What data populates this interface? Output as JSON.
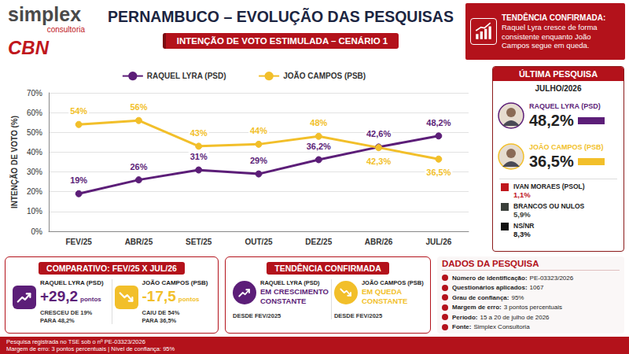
{
  "header": {
    "brand": "simplex",
    "brand_sub": "consultoria",
    "partner": "CBN",
    "title": "PERNAMBUCO – EVOLUÇÃO DAS PESQUISAS",
    "subtitle": "INTENÇÃO DE VOTO ESTIMULADA – CENÁRIO 1",
    "callout": {
      "title": "TENDÊNCIA CONFIRMADA:",
      "text": "Raquel Lyra cresce de forma consistente enquanto João Campos segue em queda."
    }
  },
  "chart_data": {
    "type": "line",
    "y_label": "INTENÇÃO DE VOTO (%)",
    "categories": [
      "FEV/25",
      "ABR/25",
      "SET/25",
      "OUT/25",
      "DEZ/25",
      "ABR/26",
      "JUL/26"
    ],
    "series": [
      {
        "name": "RAQUEL LYRA (PSD)",
        "color": "#5c1e78",
        "values": [
          19,
          26,
          31,
          29,
          36.2,
          42.6,
          48.2
        ],
        "value_labels": [
          "19%",
          "26%",
          "31%",
          "29%",
          "36,2%",
          "42,6%",
          "48,2%"
        ]
      },
      {
        "name": "JOÃO CAMPOS (PSB)",
        "color": "#f2bf2a",
        "values": [
          54,
          56,
          43,
          44,
          48,
          42.3,
          36.5
        ],
        "value_labels": [
          "54%",
          "56%",
          "43%",
          "44%",
          "48%",
          "42,3%",
          "36,5%"
        ]
      }
    ],
    "ylim": [
      0,
      70
    ],
    "yticks": [
      {
        "value": 0,
        "label": "0%"
      },
      {
        "value": 10,
        "label": "10%"
      },
      {
        "value": 20,
        "label": "20%"
      },
      {
        "value": 30,
        "label": "30%"
      },
      {
        "value": 40,
        "label": "40%"
      },
      {
        "value": 50,
        "label": "50%"
      },
      {
        "value": 60,
        "label": "60%"
      },
      {
        "value": 70,
        "label": "70%"
      }
    ],
    "grid": true,
    "legend": "top",
    "data_labels": true,
    "marker": "circle"
  },
  "latest_poll": {
    "title": "ÚLTIMA PESQUISA",
    "date": "JULHO/2026",
    "main": [
      {
        "name": "RAQUEL LYRA (PSD)",
        "value": "48,2%",
        "color": "#5c1e78"
      },
      {
        "name": "JOÃO CAMPOS (PSB)",
        "value": "36,5%",
        "color": "#f2bf2a"
      }
    ],
    "others": [
      {
        "name": "IVAN MORAES (PSOL)",
        "value": "1,1%",
        "color": "#c0171d"
      },
      {
        "name": "BRANCOS OU NULOS",
        "value": "5,9%",
        "color": "#3a3f3a"
      },
      {
        "name": "NS/NR",
        "value": "8,3%",
        "color": "#111111"
      }
    ]
  },
  "comparison": {
    "title": "COMPARATIVO: FEV/25 X JUL/26",
    "items": [
      {
        "name": "RAQUEL LYRA (PSD)",
        "change": "+29,2",
        "unit": "pontos",
        "detail": [
          "CRESCEU DE 19%",
          "PARA 48,2%"
        ],
        "color": "#5c1e78"
      },
      {
        "name": "JOÃO CAMPOS (PSB)",
        "change": "-17,5",
        "unit": "pontos",
        "detail": [
          "CAIU DE 54%",
          "PARA 36,5%"
        ],
        "color": "#f2bf2a"
      }
    ]
  },
  "trend": {
    "title": "TENDÊNCIA CONFIRMADA",
    "items": [
      {
        "name": "RAQUEL LYRA (PSD)",
        "status": [
          "EM CRESCIMENTO",
          "CONSTANTE"
        ],
        "since": "DESDE FEV/2025",
        "color": "#5c1e78"
      },
      {
        "name": "JOÃO CAMPOS (PSB)",
        "status": [
          "EM QUEDA",
          "CONSTANTE"
        ],
        "since": "DESDE FEV/2025",
        "color": "#f2bf2a"
      }
    ]
  },
  "survey_data": {
    "title": "DADOS DA PESQUISA",
    "rows": [
      {
        "label": "Número de identificação:",
        "value": "PE-03323/2026"
      },
      {
        "label": "Questionários aplicados:",
        "value": "1067"
      },
      {
        "label": "Grau de confiança:",
        "value": "95%"
      },
      {
        "label": "Margem de erro:",
        "value": "3 pontos percentuais"
      },
      {
        "label": "Período:",
        "value": "15 a 20 de julho de 2026"
      },
      {
        "label": "Fonte:",
        "value": "Simplex Consultoria"
      }
    ]
  },
  "footer": [
    "Pesquisa registrada no TSE sob o nº PE-03323/2026",
    "Margem de erro: 3 pontos percentuais | Nível de confiança: 95%"
  ]
}
